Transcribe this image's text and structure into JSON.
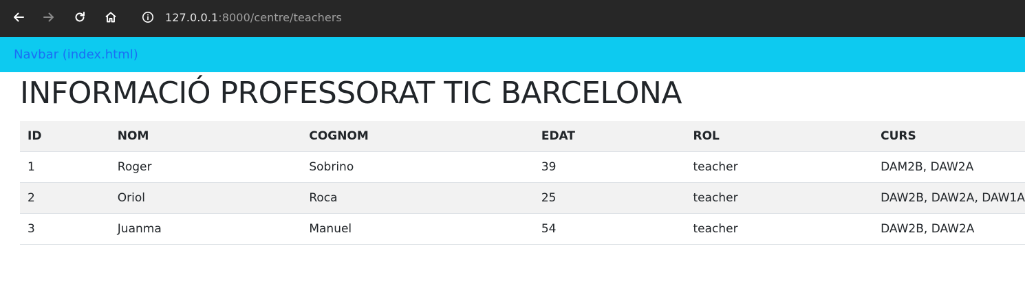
{
  "browser": {
    "url_host": "127.0.0.1",
    "url_path": ":8000/centre/teachers",
    "icons": [
      "back-arrow-icon",
      "forward-arrow-icon",
      "reload-icon",
      "home-icon",
      "info-icon"
    ]
  },
  "navbar": {
    "label": "Navbar (index.html)",
    "background": "#0dcaf0",
    "link_color": "#1a6ef5"
  },
  "page": {
    "title": "INFORMACIÓ PROFESSORAT TIC BARCELONA"
  },
  "table": {
    "headers": [
      "ID",
      "NOM",
      "COGNOM",
      "EDAT",
      "ROL",
      "CURS"
    ],
    "rows": [
      [
        "1",
        "Roger",
        "Sobrino",
        "39",
        "teacher",
        "DAM2B, DAW2A"
      ],
      [
        "2",
        "Oriol",
        "Roca",
        "25",
        "teacher",
        "DAW2B, DAW2A, DAW1A"
      ],
      [
        "3",
        "Juanma",
        "Manuel",
        "54",
        "teacher",
        "DAW2B, DAW2A"
      ]
    ],
    "stripe_color": "#f2f2f2"
  }
}
